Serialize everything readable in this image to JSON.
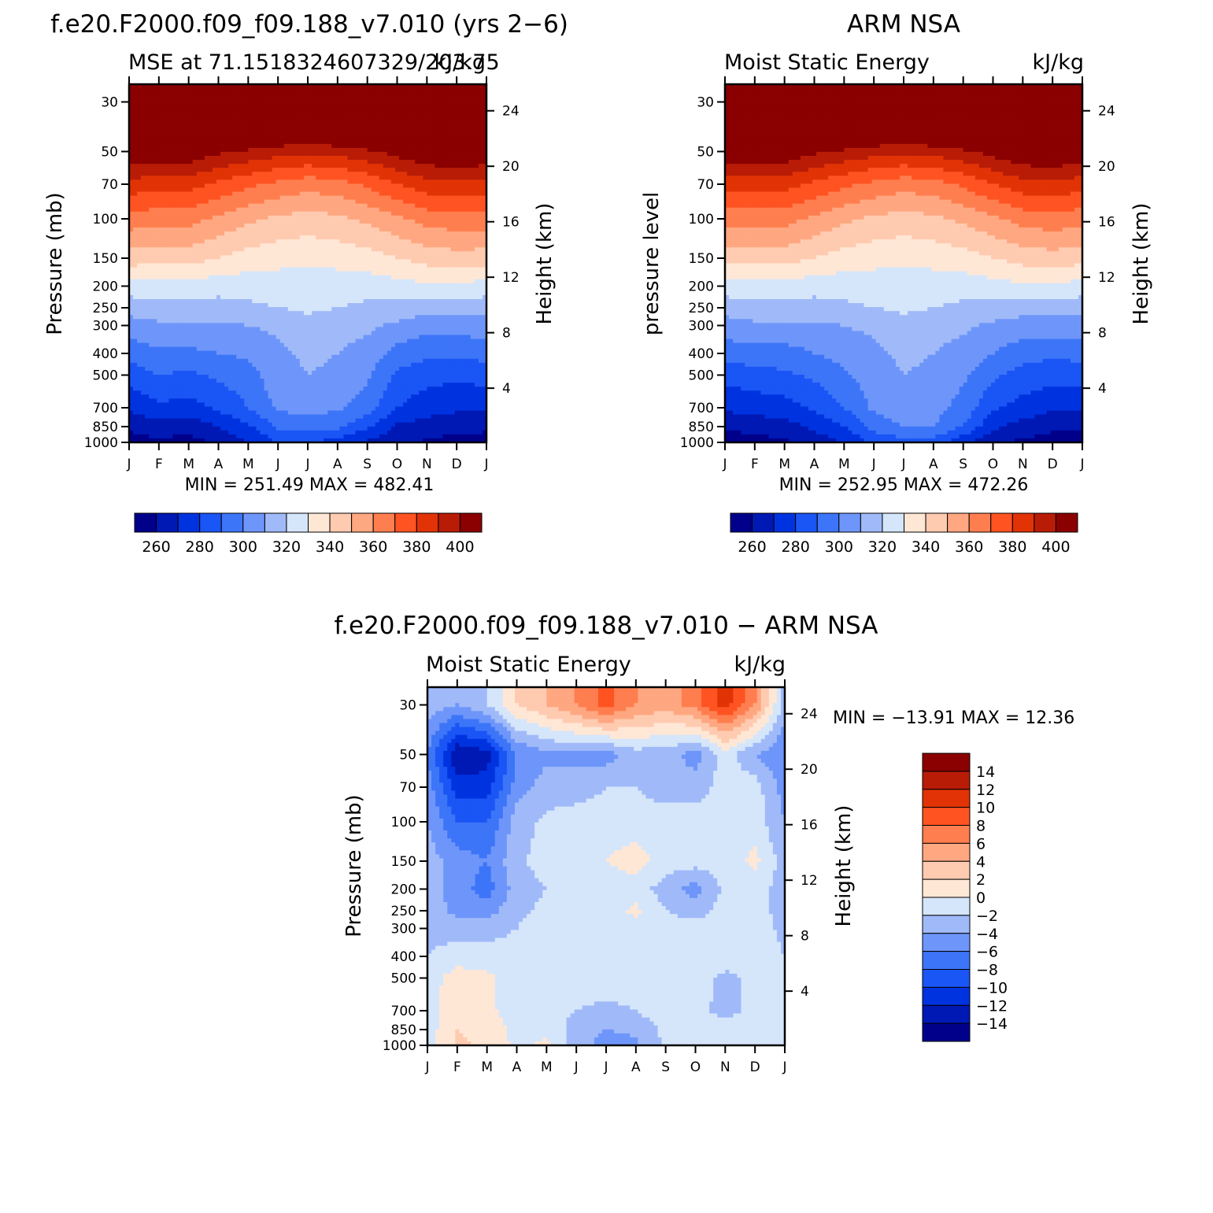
{
  "panels": [
    {
      "id": "model",
      "title": "f.e20.F2000.f09_f09.188_v7.010 (yrs 2−6)",
      "left_string": "MSE at 71.1518324607329/203.75",
      "right_string": "kJ/kg",
      "ylabel": "Pressure (mb)",
      "ylabel_right": "Height (km)",
      "minmax": "MIN = 251.49 MAX = 482.41",
      "months": [
        "J",
        "F",
        "M",
        "A",
        "M",
        "J",
        "J",
        "A",
        "S",
        "O",
        "N",
        "D",
        "J"
      ],
      "pressure_ticks": [
        "30",
        "50",
        "70",
        "100",
        "150",
        "200",
        "250",
        "300",
        "400",
        "500",
        "700",
        "850",
        "1000"
      ],
      "height_ticks": [
        "24",
        "20",
        "16",
        "12",
        "8",
        "4"
      ],
      "colorbar_labels": [
        "260",
        "280",
        "300",
        "320",
        "340",
        "360",
        "380",
        "400"
      ]
    },
    {
      "id": "obs",
      "title": "ARM NSA",
      "left_string": "Moist Static Energy",
      "right_string": "kJ/kg",
      "ylabel": "pressure level",
      "ylabel_right": "Height (km)",
      "minmax": "MIN = 252.95 MAX = 472.26",
      "months": [
        "J",
        "F",
        "M",
        "A",
        "M",
        "J",
        "J",
        "A",
        "S",
        "O",
        "N",
        "D",
        "J"
      ],
      "pressure_ticks": [
        "30",
        "50",
        "70",
        "100",
        "150",
        "200",
        "250",
        "300",
        "400",
        "500",
        "700",
        "850",
        "1000"
      ],
      "height_ticks": [
        "24",
        "20",
        "16",
        "12",
        "8",
        "4"
      ],
      "colorbar_labels": [
        "260",
        "280",
        "300",
        "320",
        "340",
        "360",
        "380",
        "400"
      ]
    },
    {
      "id": "diff",
      "title": "f.e20.F2000.f09_f09.188_v7.010 − ARM NSA",
      "left_string": "Moist Static Energy",
      "right_string": "kJ/kg",
      "ylabel": "Pressure (mb)",
      "ylabel_right": "Height (km)",
      "minmax": "MIN = −13.91 MAX =   12.36",
      "months": [
        "J",
        "F",
        "M",
        "A",
        "M",
        "J",
        "J",
        "A",
        "S",
        "O",
        "N",
        "D",
        "J"
      ],
      "pressure_ticks": [
        "30",
        "50",
        "70",
        "100",
        "150",
        "200",
        "250",
        "300",
        "400",
        "500",
        "700",
        "850",
        "1000"
      ],
      "height_ticks": [
        "24",
        "20",
        "16",
        "12",
        "8",
        "4"
      ],
      "colorbar_labels": [
        "14",
        "12",
        "10",
        "8",
        "6",
        "4",
        "2",
        "0",
        "−2",
        "−4",
        "−6",
        "−8",
        "−10",
        "−12",
        "−14"
      ]
    }
  ],
  "colors": {
    "mse_levels": [
      "#00008b",
      "#0019b4",
      "#0033e0",
      "#1a55f5",
      "#3d75f8",
      "#6e96fa",
      "#a0baf9",
      "#d5e6fb",
      "#ffe7d6",
      "#ffcbb0",
      "#ffa781",
      "#ff7e4f",
      "#ff5322",
      "#e13305",
      "#b81c07",
      "#8b0000"
    ],
    "diff_levels": [
      "#00008b",
      "#0019b4",
      "#0033e0",
      "#1a55f5",
      "#3d75f8",
      "#6e96fa",
      "#a0baf9",
      "#d5e6fb",
      "#ffe7d6",
      "#ffcbb0",
      "#ffa781",
      "#ff7e4f",
      "#ff5322",
      "#e13305",
      "#b81c07",
      "#8b0000"
    ]
  },
  "chart_data": [
    {
      "type": "heatmap",
      "name_ref": "model",
      "x": [
        "J",
        "F",
        "M",
        "A",
        "M",
        "J",
        "J",
        "A",
        "S",
        "O",
        "N",
        "D",
        "J"
      ],
      "y_pressure_mb": [
        1000,
        850,
        700,
        500,
        400,
        300,
        250,
        200,
        150,
        100,
        70,
        50,
        30
      ],
      "z_units": "kJ/kg",
      "contour_levels": [
        250,
        260,
        270,
        280,
        290,
        300,
        310,
        320,
        330,
        340,
        350,
        360,
        370,
        380,
        390,
        400
      ],
      "z": [
        [
          255,
          258,
          256,
          262,
          270,
          280,
          280,
          276,
          268,
          264,
          258,
          256,
          256
        ],
        [
          262,
          266,
          264,
          270,
          278,
          292,
          294,
          292,
          282,
          268,
          266,
          264,
          262
        ],
        [
          272,
          278,
          276,
          282,
          290,
          302,
          304,
          302,
          294,
          280,
          274,
          272,
          272
        ],
        [
          284,
          290,
          288,
          292,
          296,
          306,
          310,
          308,
          302,
          288,
          284,
          282,
          284
        ],
        [
          294,
          298,
          298,
          300,
          302,
          308,
          312,
          310,
          306,
          296,
          292,
          292,
          294
        ],
        [
          306,
          308,
          308,
          308,
          310,
          312,
          316,
          314,
          312,
          308,
          304,
          304,
          306
        ],
        [
          314,
          316,
          316,
          316,
          318,
          320,
          322,
          320,
          318,
          316,
          314,
          314,
          314
        ],
        [
          326,
          326,
          326,
          324,
          324,
          324,
          326,
          324,
          324,
          326,
          328,
          328,
          326
        ],
        [
          345,
          344,
          344,
          340,
          336,
          334,
          332,
          334,
          336,
          340,
          344,
          346,
          345
        ],
        [
          366,
          364,
          364,
          358,
          352,
          348,
          346,
          348,
          352,
          358,
          364,
          366,
          366
        ],
        [
          386,
          384,
          384,
          378,
          372,
          368,
          364,
          366,
          372,
          380,
          386,
          388,
          386
        ],
        [
          410,
          408,
          408,
          402,
          398,
          394,
          392,
          394,
          398,
          404,
          410,
          412,
          410
        ],
        [
          460,
          458,
          458,
          455,
          452,
          450,
          448,
          450,
          452,
          456,
          460,
          462,
          460
        ]
      ]
    },
    {
      "type": "heatmap",
      "name_ref": "obs",
      "x": [
        "J",
        "F",
        "M",
        "A",
        "M",
        "J",
        "J",
        "A",
        "S",
        "O",
        "N",
        "D",
        "J"
      ],
      "y_pressure_mb": [
        1000,
        850,
        700,
        500,
        400,
        300,
        250,
        200,
        150,
        100,
        70,
        50,
        30
      ],
      "z_units": "kJ/kg",
      "contour_levels": [
        250,
        260,
        270,
        280,
        290,
        300,
        310,
        320,
        330,
        340,
        350,
        360,
        370,
        380,
        390,
        400
      ],
      "z": [
        [
          254,
          256,
          258,
          264,
          270,
          282,
          286,
          286,
          272,
          262,
          258,
          256,
          254
        ],
        [
          262,
          264,
          266,
          272,
          280,
          294,
          300,
          300,
          290,
          272,
          266,
          262,
          262
        ],
        [
          272,
          274,
          276,
          282,
          290,
          302,
          306,
          304,
          296,
          282,
          276,
          272,
          272
        ],
        [
          284,
          286,
          288,
          292,
          298,
          306,
          310,
          308,
          302,
          292,
          286,
          284,
          284
        ],
        [
          294,
          296,
          296,
          300,
          304,
          308,
          312,
          310,
          306,
          300,
          294,
          292,
          294
        ],
        [
          306,
          308,
          308,
          308,
          310,
          312,
          316,
          314,
          312,
          308,
          306,
          306,
          306
        ],
        [
          314,
          316,
          316,
          316,
          318,
          320,
          322,
          320,
          318,
          316,
          314,
          314,
          314
        ],
        [
          326,
          326,
          326,
          324,
          324,
          324,
          326,
          324,
          324,
          326,
          328,
          328,
          326
        ],
        [
          344,
          344,
          344,
          340,
          336,
          334,
          332,
          334,
          336,
          340,
          344,
          346,
          344
        ],
        [
          364,
          364,
          364,
          358,
          352,
          348,
          346,
          348,
          352,
          358,
          364,
          366,
          364
        ],
        [
          384,
          384,
          384,
          378,
          372,
          368,
          364,
          366,
          372,
          380,
          386,
          388,
          384
        ],
        [
          408,
          408,
          408,
          402,
          398,
          394,
          392,
          394,
          398,
          404,
          410,
          412,
          408
        ],
        [
          458,
          458,
          458,
          455,
          452,
          450,
          448,
          450,
          452,
          456,
          460,
          462,
          458
        ]
      ]
    },
    {
      "type": "heatmap",
      "name_ref": "diff",
      "x": [
        "J",
        "F",
        "M",
        "A",
        "M",
        "J",
        "J",
        "A",
        "S",
        "O",
        "N",
        "D",
        "J"
      ],
      "y_pressure_mb": [
        1000,
        850,
        700,
        500,
        400,
        300,
        250,
        200,
        150,
        100,
        70,
        50,
        30
      ],
      "z_units": "kJ/kg",
      "contour_levels": [
        -16,
        -14,
        -12,
        -10,
        -8,
        -6,
        -4,
        -2,
        0,
        2,
        4,
        6,
        8,
        10,
        12,
        14
      ],
      "z": [
        [
          -1,
          2.5,
          1.5,
          -0.5,
          0.5,
          -3,
          -5,
          -4.5,
          -1.5,
          -0.5,
          -0.5,
          -0.5,
          -1
        ],
        [
          -1,
          2,
          1,
          -0.5,
          -0.5,
          -3,
          -4,
          -3.5,
          -1.5,
          -0.5,
          -1,
          -1,
          -1
        ],
        [
          -1,
          1.5,
          0.5,
          -1,
          -1,
          -2,
          -2.5,
          -2,
          -0.5,
          -1,
          -3,
          -1,
          -1
        ],
        [
          -1,
          1,
          0.5,
          -1,
          -1,
          -1,
          -1,
          -1,
          -1,
          -1,
          -2.5,
          -1.5,
          -1
        ],
        [
          -2,
          -1,
          -1,
          -1,
          -1,
          -1,
          -1,
          -1,
          -1,
          -1,
          -1,
          -1,
          -2
        ],
        [
          -2.5,
          -3,
          -3,
          -2,
          -1,
          -1,
          -1,
          -1,
          -1,
          -1,
          -1,
          -1,
          -2.5
        ],
        [
          -3,
          -4.5,
          -5,
          -2.5,
          -1.5,
          -1,
          -1,
          0.5,
          -2,
          -3,
          -1,
          -1,
          -3
        ],
        [
          -3,
          -5,
          -7,
          -3,
          -2,
          -2,
          -1,
          -1,
          -3,
          -5,
          -1.5,
          -1,
          -3
        ],
        [
          -3,
          -5,
          -6,
          -2.5,
          -1,
          -1,
          0,
          1,
          -1,
          -1,
          -1,
          0.5,
          -3
        ],
        [
          -4,
          -8,
          -8,
          -3,
          -1.5,
          -1,
          -1,
          -1,
          -1,
          -1,
          -1,
          -1,
          -4
        ],
        [
          -5,
          -11,
          -11,
          -5,
          -3,
          -3,
          -2,
          -2,
          -3,
          -3,
          -1,
          -1,
          -5
        ],
        [
          -6,
          -14,
          -13,
          -6,
          -4.5,
          -4.5,
          -5,
          -3,
          -3,
          -5,
          -1,
          -4,
          -6
        ],
        [
          -3,
          -4,
          -2,
          2,
          4,
          6,
          9,
          6,
          5,
          7,
          11,
          6,
          -3
        ]
      ]
    }
  ]
}
